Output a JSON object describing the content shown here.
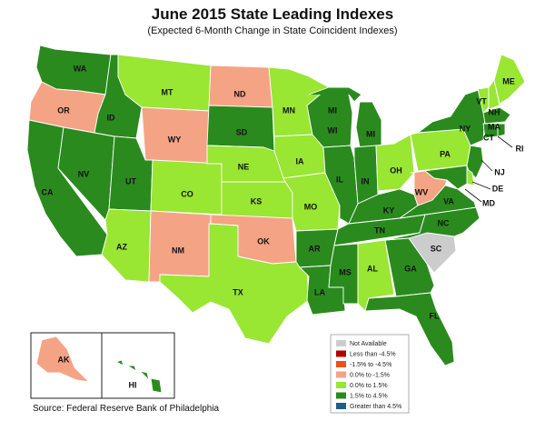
{
  "title": "June 2015 State Leading Indexes",
  "subtitle": "(Expected 6-Month Change in State Coincident Indexes)",
  "source": "Source: Federal Reserve Bank of Philadelphia",
  "colors": {
    "not_available": "#cccccc",
    "lt_neg45": "#b30000",
    "neg15_neg45": "#e8531c",
    "zero_neg15": "#f5a385",
    "zero_15": "#99e633",
    "p15_45": "#2a8a1e",
    "gt_45": "#1f5f80"
  },
  "legend": [
    {
      "key": "not_available",
      "label": "Not Available",
      "color": "#cccccc"
    },
    {
      "key": "lt_neg45",
      "label": "Less than -4.5%",
      "color": "#b30000"
    },
    {
      "key": "neg15_neg45",
      "label": "-1.5% to -4.5%",
      "color": "#e8531c"
    },
    {
      "key": "zero_neg15",
      "label": "0.0% to -1.5%",
      "color": "#f5a385"
    },
    {
      "key": "zero_15",
      "label": "0.0% to  1.5%",
      "color": "#99e633"
    },
    {
      "key": "p15_45",
      "label": "1.5% to  4.5%",
      "color": "#2a8a1e"
    },
    {
      "key": "gt_45",
      "label": "Greater than 4.5%",
      "color": "#1f5f80"
    }
  ],
  "states": {
    "WA": "p15_45",
    "OR": "zero_neg15",
    "CA": "p15_45",
    "NV": "p15_45",
    "ID": "p15_45",
    "MT": "zero_15",
    "WY": "zero_neg15",
    "UT": "p15_45",
    "AZ": "zero_15",
    "CO": "zero_15",
    "NM": "zero_neg15",
    "ND": "zero_neg15",
    "SD": "p15_45",
    "NE": "zero_15",
    "KS": "zero_15",
    "OK": "zero_neg15",
    "TX": "zero_15",
    "MN": "zero_15",
    "IA": "zero_15",
    "MO": "zero_15",
    "AR": "p15_45",
    "LA": "p15_45",
    "WI": "p15_45",
    "IL": "p15_45",
    "MI": "p15_45",
    "IN": "p15_45",
    "OH": "zero_15",
    "KY": "p15_45",
    "TN": "p15_45",
    "MS": "p15_45",
    "AL": "zero_15",
    "GA": "p15_45",
    "FL": "p15_45",
    "SC": "not_available",
    "NC": "p15_45",
    "VA": "p15_45",
    "WV": "zero_neg15",
    "PA": "zero_15",
    "NY": "p15_45",
    "VT": "zero_15",
    "NH": "zero_15",
    "ME": "zero_15",
    "MA": "p15_45",
    "CT": "p15_45",
    "RI": "p15_45",
    "NJ": "p15_45",
    "DE": "zero_15",
    "MD": "p15_45",
    "AK": "zero_neg15",
    "HI": "p15_45"
  },
  "labels": {
    "WA": "WA",
    "OR": "OR",
    "CA": "CA",
    "NV": "NV",
    "ID": "ID",
    "MT": "MT",
    "WY": "WY",
    "UT": "UT",
    "AZ": "AZ",
    "CO": "CO",
    "NM": "NM",
    "ND": "ND",
    "SD": "SD",
    "NE": "NE",
    "KS": "KS",
    "OK": "OK",
    "TX": "TX",
    "MN": "MN",
    "IA": "IA",
    "MO": "MO",
    "AR": "AR",
    "LA": "LA",
    "WI": "WI",
    "IL": "IL",
    "MI": "MI",
    "IN": "IN",
    "OH": "OH",
    "KY": "KY",
    "TN": "TN",
    "MS": "MS",
    "AL": "AL",
    "GA": "GA",
    "FL": "FL",
    "SC": "SC",
    "NC": "NC",
    "VA": "VA",
    "WV": "WV",
    "PA": "PA",
    "NY": "NY",
    "VT": "VT",
    "NH": "NH",
    "ME": "ME",
    "MA": "MA",
    "CT": "CT",
    "RI": "RI",
    "NJ": "NJ",
    "DE": "DE",
    "MD": "MD",
    "AK": "AK",
    "HI": "HI"
  }
}
